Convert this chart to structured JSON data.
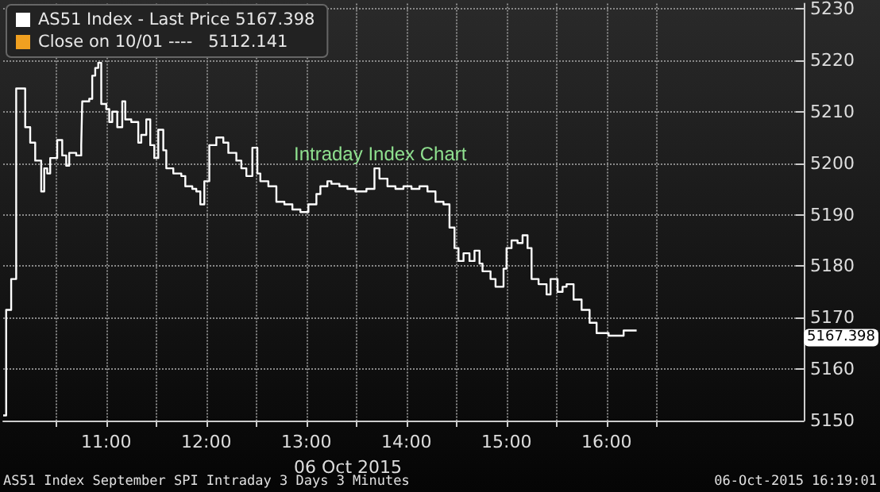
{
  "chart_data": {
    "type": "step",
    "title": "Intraday Index Chart",
    "xlabel": "06 Oct 2015",
    "annotations": [
      "5167.398",
      "AS51 Index September SPI Intraday 3 Days 3 Minutes",
      "06-Oct-2015 16:19:01"
    ],
    "x": [
      9.97,
      10.0,
      10.05,
      10.1,
      10.16,
      10.19,
      10.24,
      10.29,
      10.35,
      10.38,
      10.41,
      10.44,
      10.48,
      10.51,
      10.56,
      10.6,
      10.63,
      10.7,
      10.75,
      10.76,
      10.83,
      10.86,
      10.89,
      10.92,
      10.95,
      11.0,
      11.03,
      11.06,
      11.11,
      11.16,
      11.19,
      11.25,
      11.32,
      11.35,
      11.4,
      11.44,
      11.48,
      11.52,
      11.57,
      11.6,
      11.67,
      11.75,
      11.79,
      11.86,
      11.9,
      11.94,
      11.98,
      12.03,
      12.1,
      12.17,
      12.22,
      12.3,
      12.35,
      12.4,
      12.46,
      12.51,
      12.54,
      12.62,
      12.7,
      12.78,
      12.86,
      12.94,
      13.02,
      13.1,
      13.14,
      13.21,
      13.25,
      13.33,
      13.41,
      13.49,
      13.6,
      13.68,
      13.73,
      13.81,
      13.89,
      13.97,
      14.05,
      14.13,
      14.21,
      14.29,
      14.37,
      14.43,
      14.48,
      14.52,
      14.57,
      14.63,
      14.68,
      14.73,
      14.76,
      14.84,
      14.89,
      14.97,
      15.0,
      15.05,
      15.11,
      15.16,
      15.21,
      15.25,
      15.32,
      15.4,
      15.44,
      15.51,
      15.56,
      15.6,
      15.67,
      15.75,
      15.83,
      15.9,
      15.97,
      16.02,
      16.14,
      16.17,
      16.3
    ],
    "series": [
      {
        "name": "AS51 Index - Last Price 5167.398",
        "color": "#ffffff",
        "values": [
          5151,
          5171.5,
          5177.5,
          5214.5,
          5214.5,
          5207,
          5204,
          5200.5,
          5194.5,
          5199,
          5198,
          5201,
          5201,
          5204.5,
          5201.5,
          5199.5,
          5202,
          5201.5,
          5203.5,
          5212,
          5212.5,
          5217,
          5218.5,
          5219.5,
          5211.5,
          5210.5,
          5208,
          5210,
          5207,
          5212,
          5208.5,
          5208,
          5204,
          5205.5,
          5208.5,
          5203.5,
          5201,
          5206.5,
          5202.5,
          5199,
          5198,
          5197.5,
          5195.5,
          5195,
          5194.5,
          5192,
          5196.5,
          5203.5,
          5205,
          5204,
          5202,
          5200.5,
          5199,
          5197.5,
          5203,
          5198,
          5196.5,
          5195.5,
          5192.5,
          5192,
          5191,
          5190.5,
          5192,
          5194,
          5195.5,
          5196.5,
          5196,
          5195.5,
          5195,
          5194.5,
          5195,
          5199,
          5197,
          5195.5,
          5195,
          5195.5,
          5195,
          5195.5,
          5194.5,
          5192.5,
          5192,
          5187.5,
          5183.5,
          5181,
          5182.5,
          5181,
          5183,
          5180.5,
          5179,
          5177.5,
          5176,
          5179.5,
          5183.5,
          5185,
          5184.5,
          5186,
          5183.5,
          5177.5,
          5176.5,
          5174.5,
          5177.5,
          5175,
          5176,
          5176.5,
          5173.5,
          5171.5,
          5169,
          5167,
          5167,
          5166.5,
          5166.5,
          5167.5,
          5167.5
        ]
      },
      {
        "name": "Close on 10/01 ----   5112.141",
        "color": "#f0a020",
        "values": [
          null,
          null,
          null,
          null,
          null,
          null,
          null,
          null,
          null,
          null,
          null,
          null,
          null,
          null,
          null,
          null,
          null,
          null,
          null,
          null,
          null,
          null,
          null,
          null,
          null,
          null,
          null,
          null,
          null,
          null,
          null,
          null,
          null,
          null,
          null,
          null,
          null,
          null,
          null,
          null,
          null,
          null,
          null,
          null,
          null,
          null,
          null,
          null,
          null,
          null,
          null,
          null,
          null,
          null,
          null,
          null,
          null,
          null,
          null,
          null,
          null,
          null,
          null,
          null,
          null,
          null,
          null,
          null,
          null,
          null,
          null,
          null,
          null,
          null,
          null,
          null,
          null,
          null,
          null,
          null,
          null,
          null,
          null,
          null,
          null,
          null,
          null,
          null,
          null,
          null,
          null,
          null,
          null,
          null,
          null,
          null,
          null,
          null,
          null,
          null,
          null,
          null,
          null,
          null,
          null,
          null,
          null,
          null,
          null,
          null,
          null,
          null,
          null
        ]
      }
    ],
    "xlim": [
      9.97,
      17.97
    ],
    "xticks": [
      {
        "value": 10.5,
        "label": null
      },
      {
        "value": 11,
        "label": "11:00"
      },
      {
        "value": 11.5,
        "label": null
      },
      {
        "value": 12,
        "label": "12:00"
      },
      {
        "value": 12.5,
        "label": null
      },
      {
        "value": 13,
        "label": "13:00"
      },
      {
        "value": 13.5,
        "label": null
      },
      {
        "value": 14,
        "label": "14:00"
      },
      {
        "value": 14.5,
        "label": null
      },
      {
        "value": 15,
        "label": "15:00"
      },
      {
        "value": 15.5,
        "label": null
      },
      {
        "value": 16,
        "label": "16:00"
      },
      {
        "value": 16.5,
        "label": null
      }
    ],
    "ylim": [
      5150,
      5231
    ],
    "yticks": [
      5150,
      5160,
      5170,
      5180,
      5190,
      5200,
      5210,
      5220,
      5230
    ],
    "grid": true,
    "legend": "top left",
    "marker": "none",
    "line_style": "solid"
  }
}
